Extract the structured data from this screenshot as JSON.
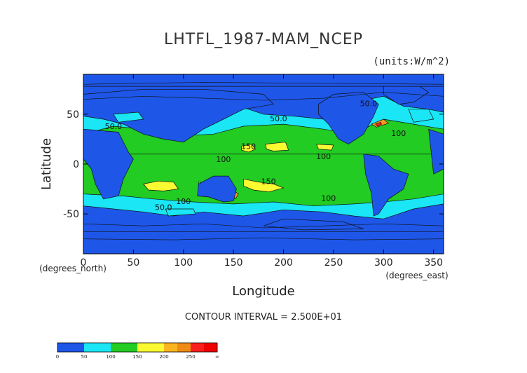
{
  "chart_data": {
    "type": "heatmap",
    "title": "LHTFL_1987-MAM_NCEP",
    "units": "(units:W/m^2)",
    "xlabel": "Longitude",
    "ylabel": "Latitude",
    "x_unit_label": "(degrees_east)",
    "y_unit_label": "(degrees_north)",
    "xlim": [
      0,
      360
    ],
    "ylim": [
      -90,
      90
    ],
    "x_ticks": [
      0,
      50,
      100,
      150,
      200,
      250,
      300,
      350
    ],
    "y_ticks": [
      -50,
      0,
      50
    ],
    "contour_interval": "CONTOUR INTERVAL = 2.500E+01",
    "contour_labels": [
      {
        "text": "50.0",
        "lon": 30,
        "lat": 35
      },
      {
        "text": "50.0",
        "lon": 195,
        "lat": 43
      },
      {
        "text": "50.0",
        "lon": 285,
        "lat": 58
      },
      {
        "text": "100",
        "lon": 315,
        "lat": 28
      },
      {
        "text": "150",
        "lon": 165,
        "lat": 15
      },
      {
        "text": "100",
        "lon": 240,
        "lat": 5
      },
      {
        "text": "100",
        "lon": 140,
        "lat": 2
      },
      {
        "text": "150",
        "lon": 185,
        "lat": -20
      },
      {
        "text": "100",
        "lon": 245,
        "lat": -37
      },
      {
        "text": "100",
        "lon": 100,
        "lat": -40
      },
      {
        "text": "50.0",
        "lon": 80,
        "lat": -46
      }
    ],
    "colorbar": {
      "ticks": [
        "0",
        "50",
        "100",
        "150",
        "200",
        "250",
        "∞"
      ],
      "colors": [
        "#1e56e8",
        "#1e56e8",
        "#1ae6f5",
        "#1ae6f5",
        "#22cc22",
        "#22cc22",
        "#fafa33",
        "#fafa33",
        "#fab41e",
        "#f08c14",
        "#fa1e1e",
        "#f00000"
      ]
    },
    "levels": [
      50,
      100,
      150,
      200,
      250
    ],
    "fill_colors": {
      "lt50": "#1e56e8",
      "50_100": "#1ae6f5",
      "100_150": "#22cc22",
      "150_200": "#fafa33",
      "200_250": "#f09a1e",
      "gt250": "#fa1e1e"
    }
  }
}
